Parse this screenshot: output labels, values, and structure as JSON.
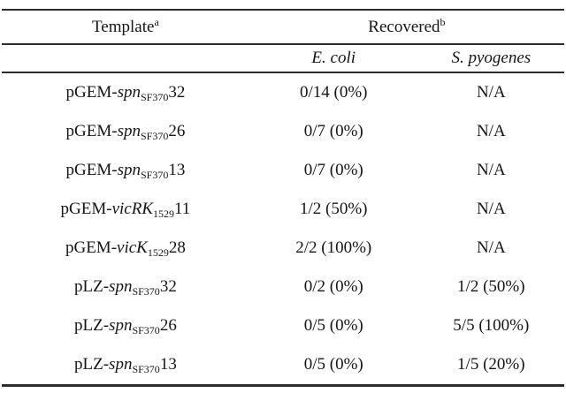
{
  "colors": {
    "background": "#ffffff",
    "text": "#151515",
    "rule": "#2c2c2c"
  },
  "table": {
    "header": {
      "template_label": "Template",
      "template_sup": "a",
      "recovered_label": "Recovered",
      "recovered_sup": "b",
      "col_ecoli": "E. coli",
      "col_spyogenes": "S. pyogenes"
    },
    "rows": [
      {
        "prefix": "pGEM-",
        "gene": "spn",
        "sub": "SF370",
        "clone": "32",
        "ecoli": "0/14 (0%)",
        "spyogenes": "N/A"
      },
      {
        "prefix": "pGEM-",
        "gene": "spn",
        "sub": "SF370",
        "clone": "26",
        "ecoli": "0/7 (0%)",
        "spyogenes": "N/A"
      },
      {
        "prefix": "pGEM-",
        "gene": "spn",
        "sub": "SF370",
        "clone": "13",
        "ecoli": "0/7 (0%)",
        "spyogenes": "N/A"
      },
      {
        "prefix": "pGEM-",
        "gene": "vicRK",
        "sub": "1529",
        "clone": "11",
        "ecoli": "1/2 (50%)",
        "spyogenes": "N/A"
      },
      {
        "prefix": "pGEM-",
        "gene": "vicK",
        "sub": "1529",
        "clone": "28",
        "ecoli": "2/2 (100%)",
        "spyogenes": "N/A"
      },
      {
        "prefix": "pLZ-",
        "gene": "spn",
        "sub": "SF370",
        "clone": "32",
        "ecoli": "0/2 (0%)",
        "spyogenes": "1/2 (50%)"
      },
      {
        "prefix": "pLZ-",
        "gene": "spn",
        "sub": "SF370",
        "clone": "26",
        "ecoli": "0/5 (0%)",
        "spyogenes": "5/5 (100%)"
      },
      {
        "prefix": "pLZ-",
        "gene": "spn",
        "sub": "SF370",
        "clone": "13",
        "ecoli": "0/5 (0%)",
        "spyogenes": "1/5 (20%)"
      }
    ]
  }
}
